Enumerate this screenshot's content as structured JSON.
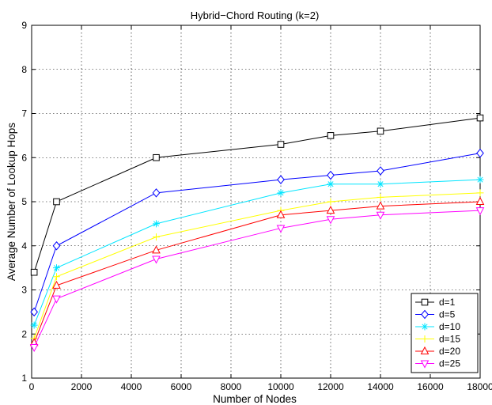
{
  "chart_data": {
    "type": "line",
    "title": "Hybrid−Chord Routing (k=2)",
    "xlabel": "Number of Nodes",
    "ylabel": "Average Number of Lookup Hops",
    "xlim": [
      0,
      18000
    ],
    "ylim": [
      1,
      9
    ],
    "xticks": [
      0,
      2000,
      4000,
      6000,
      8000,
      10000,
      12000,
      14000,
      16000,
      18000
    ],
    "yticks": [
      1,
      2,
      3,
      4,
      5,
      6,
      7,
      8,
      9
    ],
    "grid": true,
    "legend_position": "bottom-right",
    "x": [
      100,
      1000,
      5000,
      10000,
      12000,
      14000,
      18000
    ],
    "series": [
      {
        "name": "d=1",
        "color": "#000000",
        "marker": "square",
        "values": [
          3.4,
          5.0,
          6.0,
          6.3,
          6.5,
          6.6,
          6.9
        ]
      },
      {
        "name": "d=5",
        "color": "#0000ff",
        "marker": "diamond",
        "values": [
          2.5,
          4.0,
          5.2,
          5.5,
          5.6,
          5.7,
          6.1
        ]
      },
      {
        "name": "d=10",
        "color": "#00e5ff",
        "marker": "asterisk",
        "values": [
          2.2,
          3.5,
          4.5,
          5.2,
          5.4,
          5.4,
          5.5
        ]
      },
      {
        "name": "d=15",
        "color": "#ffff00",
        "marker": "plus",
        "values": [
          1.9,
          3.3,
          4.2,
          4.8,
          5.0,
          5.1,
          5.2
        ]
      },
      {
        "name": "d=20",
        "color": "#ff0000",
        "marker": "triangle-up",
        "values": [
          1.8,
          3.1,
          3.9,
          4.7,
          4.8,
          4.9,
          5.0
        ]
      },
      {
        "name": "d=25",
        "color": "#ff00ff",
        "marker": "triangle-down",
        "values": [
          1.7,
          2.8,
          3.7,
          4.4,
          4.6,
          4.7,
          4.8
        ]
      }
    ]
  }
}
